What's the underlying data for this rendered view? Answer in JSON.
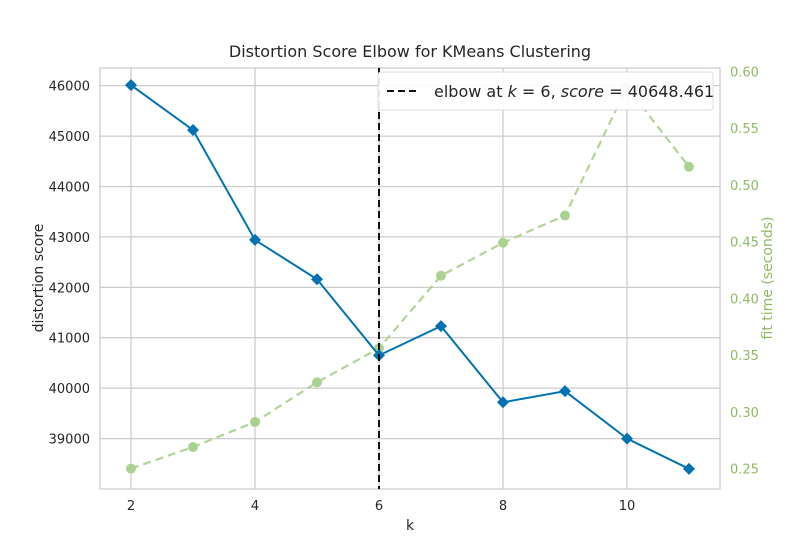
{
  "chart_data": {
    "type": "line",
    "title": "Distortion Score Elbow for KMeans Clustering",
    "xlabel": "k",
    "ylabel": "distortion score",
    "y2label": "fit time (seconds)",
    "x": [
      2,
      3,
      4,
      5,
      6,
      7,
      8,
      9,
      10,
      11
    ],
    "xlim": [
      1.5,
      11.5
    ],
    "x_ticks": [
      "2",
      "4",
      "6",
      "8",
      "10"
    ],
    "ylim": [
      38000,
      46350
    ],
    "y_ticks": [
      "39000",
      "40000",
      "41000",
      "42000",
      "43000",
      "44000",
      "45000",
      "46000"
    ],
    "y2lim": [
      0.232,
      0.603
    ],
    "y2_ticks": [
      "0.25",
      "0.30",
      "0.35",
      "0.40",
      "0.45",
      "0.50",
      "0.55",
      "0.60"
    ],
    "series": [
      {
        "axis": "left",
        "color": "#0072B2",
        "marker": "diamond",
        "values": [
          46010,
          45120,
          42940,
          42160,
          40650,
          41230,
          39720,
          39940,
          39000,
          38400
        ]
      },
      {
        "axis": "right",
        "color": "#A8D08D",
        "marker": "circle",
        "dashed": true,
        "values": [
          0.25,
          0.269,
          0.291,
          0.326,
          0.356,
          0.42,
          0.449,
          0.473,
          0.586,
          0.516
        ]
      }
    ],
    "elbow": {
      "k": 6,
      "legend_label": "elbow at $k=6$, $score=40648.461$",
      "legend_prefix": "elbow at ",
      "legend_k_var": "k",
      "legend_k_value": " = 6, ",
      "legend_score_var": "score",
      "legend_score_value": " = 40648.461",
      "legend_position": "top-right"
    },
    "grid": true,
    "colors": {
      "left_axis_text": "#262626",
      "right_axis_text": "#8EBA64",
      "grid": "#CCCCCC",
      "frame": "#CCCCCC"
    }
  }
}
